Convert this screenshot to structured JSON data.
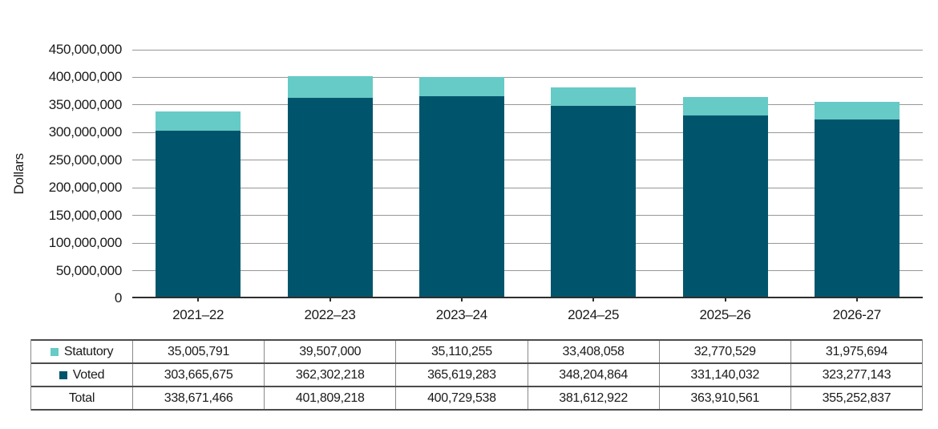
{
  "figure": {
    "y_axis_title": "Dollars"
  },
  "colors": {
    "statutory": "#66CAC6",
    "voted": "#00556C",
    "gridline": "#979797",
    "axis_line": "#2e2e2e",
    "table_h_border": "#4c4c4c",
    "table_v_border": "#8a8a8a",
    "text": "#1a1a1a"
  },
  "chart_data": {
    "type": "bar",
    "stacked": true,
    "title": "",
    "xlabel": "",
    "ylabel": "Dollars",
    "grid": true,
    "ylim": [
      0,
      450000000
    ],
    "ytick_interval": 50000000,
    "legend_position": "table rows below chart",
    "categories": [
      "2021–22",
      "2022–23",
      "2023–24",
      "2024–25",
      "2025–26",
      "2026-27"
    ],
    "series": [
      {
        "name": "Statutory",
        "color": "#66CAC6",
        "values": [
          35005791,
          39507000,
          35110255,
          33408058,
          32770529,
          31975694
        ]
      },
      {
        "name": "Voted",
        "color": "#00556C",
        "values": [
          303665675,
          362302218,
          365619283,
          348204864,
          331140032,
          323277143
        ]
      }
    ],
    "totals": [
      338671466,
      401809218,
      400729538,
      381612922,
      363910561,
      355252837
    ]
  },
  "table": {
    "rows": [
      {
        "label": "Statutory",
        "swatch_color": "#66CAC6",
        "values": [
          "35,005,791",
          "39,507,000",
          "35,110,255",
          "33,408,058",
          "32,770,529",
          "31,975,694"
        ]
      },
      {
        "label": "Voted",
        "swatch_color": "#00556C",
        "values": [
          "303,665,675",
          "362,302,218",
          "365,619,283",
          "348,204,864",
          "331,140,032",
          "323,277,143"
        ]
      },
      {
        "label": "Total",
        "swatch_color": null,
        "values": [
          "338,671,466",
          "401,809,218",
          "400,729,538",
          "381,612,922",
          "363,910,561",
          "355,252,837"
        ]
      }
    ]
  }
}
